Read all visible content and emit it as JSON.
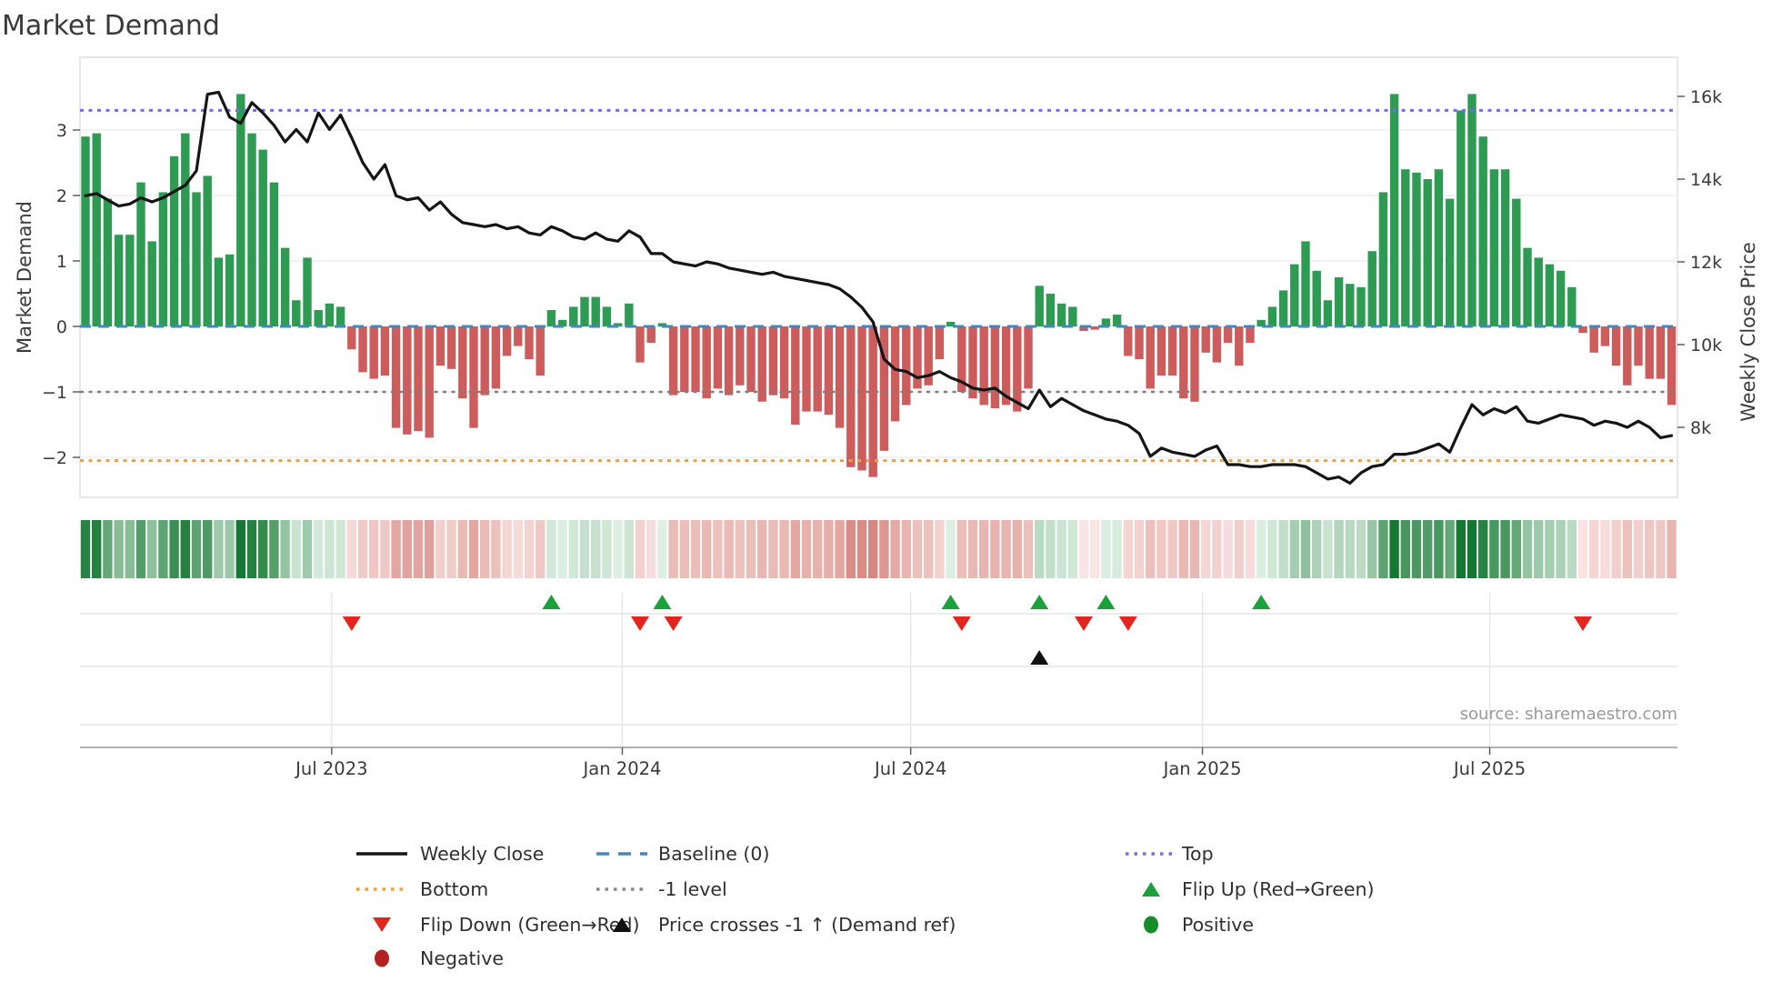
{
  "chart_data": {
    "type": "bar+line",
    "title": "Market Demand",
    "ylabel_left": "Market Demand",
    "ylabel_right": "Weekly Close Price",
    "source": "source: sharemaestro.com",
    "freq": "weekly",
    "start_date": "2023-01-30",
    "n_weeks": 144,
    "grid": true,
    "legend_position": "bottom",
    "ylim_left": [
      -2.6,
      4.1
    ],
    "ylim_right_k": [
      6.3,
      17.0
    ],
    "yticks_left": [
      {
        "label": "3",
        "value": 3
      },
      {
        "label": "2",
        "value": 2
      },
      {
        "label": "1",
        "value": 1
      },
      {
        "label": "0",
        "value": 0
      },
      {
        "label": "−1",
        "value": -1
      },
      {
        "label": "−2",
        "value": -2
      }
    ],
    "yticks_right": [
      {
        "label": "16k",
        "value": 16
      },
      {
        "label": "14k",
        "value": 14
      },
      {
        "label": "12k",
        "value": 12
      },
      {
        "label": "10k",
        "value": 10
      },
      {
        "label": "8k",
        "value": 8
      }
    ],
    "x_ticks": [
      {
        "label": "Jul 2023",
        "week": 23.2
      },
      {
        "label": "Jan 2024",
        "week": 49.4
      },
      {
        "label": "Jul 2024",
        "week": 75.4
      },
      {
        "label": "Jan 2025",
        "week": 101.7
      },
      {
        "label": "Jul 2025",
        "week": 127.6
      }
    ],
    "levels": {
      "top": 3.3,
      "baseline": 0,
      "minus_one": -1,
      "bottom": -2.05
    },
    "series": [
      {
        "name": "Market Demand (weekly bars)",
        "axis": "left",
        "values": [
          2.9,
          2.95,
          1.95,
          1.4,
          1.4,
          2.2,
          1.3,
          2.05,
          2.6,
          2.95,
          2.05,
          2.3,
          1.05,
          1.1,
          3.55,
          2.95,
          2.7,
          2.2,
          1.2,
          0.4,
          1.05,
          0.25,
          0.35,
          0.3,
          -0.35,
          -0.7,
          -0.8,
          -0.75,
          -1.55,
          -1.65,
          -1.6,
          -1.7,
          -0.6,
          -0.65,
          -1.1,
          -1.55,
          -1.05,
          -0.95,
          -0.45,
          -0.3,
          -0.5,
          -0.75,
          0.25,
          0.1,
          0.3,
          0.45,
          0.45,
          0.3,
          0.05,
          0.35,
          -0.55,
          -0.25,
          0.05,
          -1.05,
          -1.0,
          -1.0,
          -1.1,
          -0.95,
          -1.05,
          -0.9,
          -1.0,
          -1.15,
          -1.05,
          -1.1,
          -1.5,
          -1.3,
          -1.3,
          -1.35,
          -1.55,
          -2.15,
          -2.2,
          -2.3,
          -1.9,
          -1.45,
          -1.2,
          -0.95,
          -0.9,
          -0.5,
          0.07,
          -1.0,
          -1.1,
          -1.2,
          -1.25,
          -1.2,
          -1.3,
          -0.95,
          0.62,
          0.5,
          0.35,
          0.3,
          -0.07,
          -0.05,
          0.12,
          0.18,
          -0.45,
          -0.5,
          -0.95,
          -0.75,
          -0.75,
          -1.1,
          -1.15,
          -0.4,
          -0.55,
          -0.25,
          -0.6,
          -0.25,
          0.1,
          0.3,
          0.55,
          0.95,
          1.3,
          0.85,
          0.4,
          0.75,
          0.65,
          0.6,
          1.15,
          2.05,
          3.55,
          2.4,
          2.35,
          2.25,
          2.4,
          1.95,
          3.3,
          3.55,
          2.9,
          2.4,
          2.4,
          1.95,
          1.2,
          1.05,
          0.95,
          0.85,
          0.6,
          -0.1,
          -0.4,
          -0.3,
          -0.6,
          -0.9,
          -0.6,
          -0.8,
          -0.8,
          -1.2
        ]
      },
      {
        "name": "Weekly Close",
        "axis": "right",
        "unit": "k",
        "values": [
          13.6,
          13.65,
          13.5,
          13.35,
          13.4,
          13.55,
          13.45,
          13.55,
          13.7,
          13.85,
          14.2,
          16.05,
          16.1,
          15.5,
          15.35,
          15.85,
          15.6,
          15.3,
          14.9,
          15.2,
          14.9,
          15.6,
          15.2,
          15.55,
          15.0,
          14.4,
          14.0,
          14.35,
          13.6,
          13.5,
          13.55,
          13.25,
          13.45,
          13.15,
          12.95,
          12.9,
          12.85,
          12.9,
          12.8,
          12.85,
          12.7,
          12.65,
          12.85,
          12.75,
          12.6,
          12.55,
          12.7,
          12.55,
          12.5,
          12.75,
          12.6,
          12.2,
          12.2,
          12.0,
          11.95,
          11.9,
          12.0,
          11.95,
          11.85,
          11.8,
          11.75,
          11.7,
          11.75,
          11.65,
          11.6,
          11.55,
          11.5,
          11.45,
          11.35,
          11.15,
          10.9,
          10.55,
          9.65,
          9.4,
          9.35,
          9.2,
          9.25,
          9.35,
          9.2,
          9.1,
          8.95,
          8.9,
          8.95,
          8.75,
          8.6,
          8.45,
          8.9,
          8.5,
          8.7,
          8.55,
          8.4,
          8.3,
          8.2,
          8.15,
          8.05,
          7.85,
          7.3,
          7.5,
          7.4,
          7.35,
          7.3,
          7.45,
          7.55,
          7.1,
          7.1,
          7.05,
          7.05,
          7.1,
          7.1,
          7.1,
          7.05,
          6.9,
          6.75,
          6.8,
          6.65,
          6.9,
          7.05,
          7.1,
          7.35,
          7.35,
          7.4,
          7.5,
          7.6,
          7.4,
          8.0,
          8.55,
          8.3,
          8.45,
          8.35,
          8.5,
          8.15,
          8.1,
          8.2,
          8.3,
          8.25,
          8.2,
          8.05,
          8.15,
          8.1,
          8.0,
          8.15,
          8.0,
          7.75,
          7.8
        ]
      }
    ],
    "heatmap_strip": "color-coded copy of weekly demand values (green positive / red negative, intensity by magnitude)",
    "markers": {
      "flip_up_weeks": [
        43,
        53,
        79,
        87,
        93,
        107
      ],
      "flip_down_weeks": [
        25,
        51,
        54,
        80,
        91,
        95,
        136
      ],
      "price_cross_weeks": [
        87
      ]
    },
    "colors": {
      "positive_bar": "#2e9b53",
      "negative_bar": "#cd5c5c",
      "price_line": "#151515",
      "baseline": "#3f88c5",
      "top_line": "#7b68ee",
      "bottom_line": "#f0a02e",
      "minus_one_line": "#7f7f7f",
      "flip_up": "#1ba13b",
      "flip_down": "#e1251f",
      "price_cross": "#111111",
      "positive_dot": "#178c2d",
      "negative_dot": "#b22222",
      "grid": "#ebebf0",
      "spine": "#d9d9e0",
      "panel_axis": "#b0b0b8",
      "tick_text": "#3a3a3a",
      "source_text": "#999999"
    },
    "legend": {
      "columns": [
        {
          "items": [
            {
              "swatch": "solid-line",
              "color": "#151515",
              "label": "Weekly Close"
            },
            {
              "swatch": "dotted-line",
              "color": "#f0a02e",
              "label": "Bottom"
            },
            {
              "swatch": "tri-down",
              "color": "#e1251f",
              "label": "Flip Down (Green→Red)"
            },
            {
              "swatch": "circle",
              "color": "#b22222",
              "label": "Negative"
            }
          ]
        },
        {
          "items": [
            {
              "swatch": "dashed-line",
              "color": "#3f88c5",
              "label": "Baseline (0)"
            },
            {
              "swatch": "dotted-line",
              "color": "#8a8a8a",
              "label": "-1 level"
            },
            {
              "swatch": "tri-up",
              "color": "#111111",
              "label": "Price crosses -1 ↑ (Demand ref)"
            }
          ]
        },
        {
          "items": [
            {
              "swatch": "dotted-line",
              "color": "#7b68ee",
              "label": "Top"
            },
            {
              "swatch": "tri-up",
              "color": "#1ba13b",
              "label": "Flip Up (Red→Green)"
            },
            {
              "swatch": "circle",
              "color": "#178c2d",
              "label": "Positive"
            }
          ]
        }
      ]
    }
  }
}
